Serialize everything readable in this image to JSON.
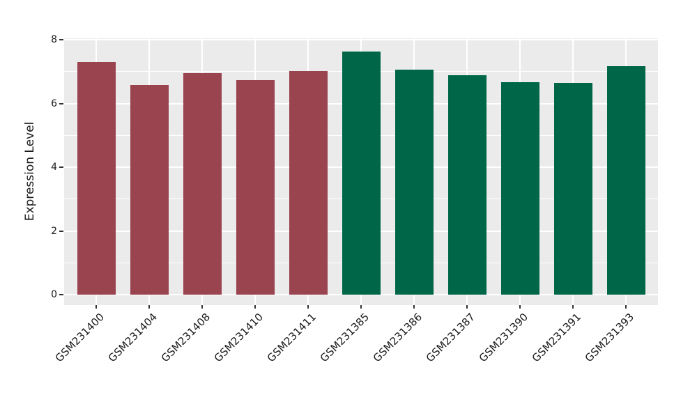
{
  "chart_data": {
    "type": "bar",
    "title": "",
    "xlabel": "",
    "ylabel": "Expression Level",
    "categories": [
      "GSM231400",
      "GSM231404",
      "GSM231408",
      "GSM231410",
      "GSM231411",
      "GSM231385",
      "GSM231386",
      "GSM231387",
      "GSM231390",
      "GSM231391",
      "GSM231393"
    ],
    "values": [
      7.31,
      6.59,
      6.95,
      6.74,
      7.02,
      7.63,
      7.05,
      6.89,
      6.67,
      6.64,
      7.17
    ],
    "bar_groups": [
      "group1",
      "group1",
      "group1",
      "group1",
      "group1",
      "group2",
      "group2",
      "group2",
      "group2",
      "group2",
      "group2"
    ],
    "group_colors": {
      "group1": "#9A4450",
      "group2": "#006648"
    },
    "yticks": [
      0,
      2,
      4,
      6,
      8
    ],
    "minor_gridlines": [
      1,
      3,
      5,
      7
    ],
    "ylim": [
      -0.35,
      8.05
    ],
    "grid": "on",
    "legend_position": "none",
    "panel_background": "#EBEBEB",
    "grid_color": "#FFFFFF",
    "tick_color": "#333333",
    "text_color": "#1A1A1A",
    "x_label_rotation_deg": 45
  }
}
